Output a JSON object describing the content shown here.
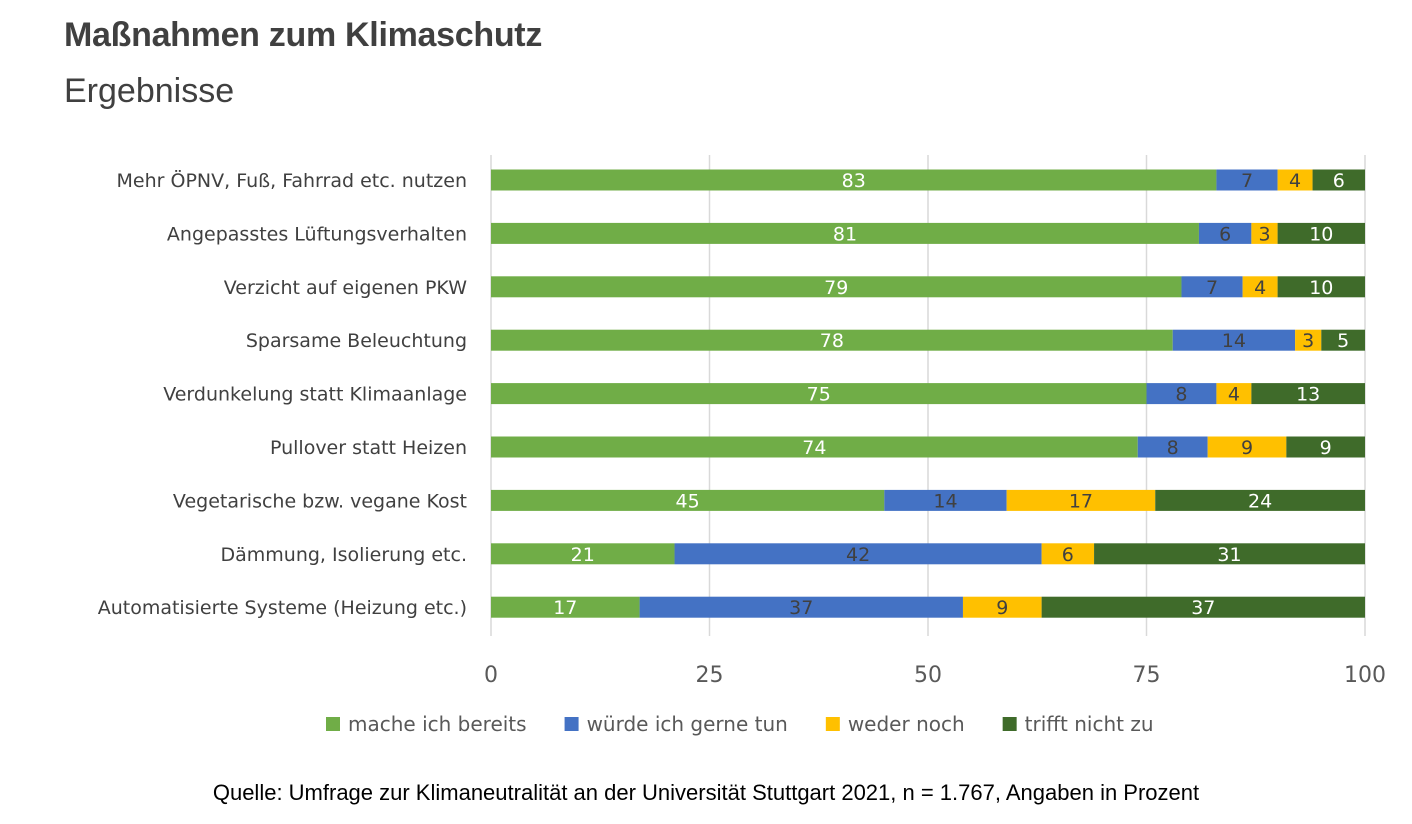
{
  "title": "Maßnahmen zum Klimaschutz",
  "subtitle": "Ergebnisse",
  "source": "Quelle: Umfrage zur Klimaneutralität an der Universität Stuttgart 2021, n = 1.767, Angaben in Prozent",
  "chart_data": {
    "type": "bar",
    "orientation": "horizontal",
    "stacked": true,
    "categories": [
      "Mehr ÖPNV, Fuß, Fahrrad etc. nutzen",
      "Angepasstes Lüftungsverhalten",
      "Verzicht auf eigenen PKW",
      "Sparsame Beleuchtung",
      "Verdunkelung statt Klimaanlage",
      "Pullover statt Heizen",
      "Vegetarische bzw. vegane Kost",
      "Dämmung, Isolierung etc.",
      "Automatisierte Systeme (Heizung etc.)"
    ],
    "series": [
      {
        "name": "mache ich bereits",
        "color": "#70ad47",
        "label_color": "#ffffff",
        "values": [
          83,
          81,
          79,
          78,
          75,
          74,
          45,
          21,
          17
        ]
      },
      {
        "name": "würde ich gerne tun",
        "color": "#4472c4",
        "label_color": "#404040",
        "values": [
          7,
          6,
          7,
          14,
          8,
          8,
          14,
          42,
          37
        ]
      },
      {
        "name": "weder noch",
        "color": "#ffc000",
        "label_color": "#404040",
        "values": [
          4,
          3,
          4,
          3,
          4,
          9,
          17,
          6,
          9
        ]
      },
      {
        "name": "trifft nicht zu",
        "color": "#3f6b2a",
        "label_color": "#ffffff",
        "values": [
          6,
          10,
          10,
          5,
          13,
          9,
          24,
          31,
          37
        ]
      }
    ],
    "xlim": [
      0,
      100
    ],
    "xticks": [
      0,
      25,
      50,
      75,
      100
    ],
    "grid": true,
    "legend_position": "bottom"
  }
}
